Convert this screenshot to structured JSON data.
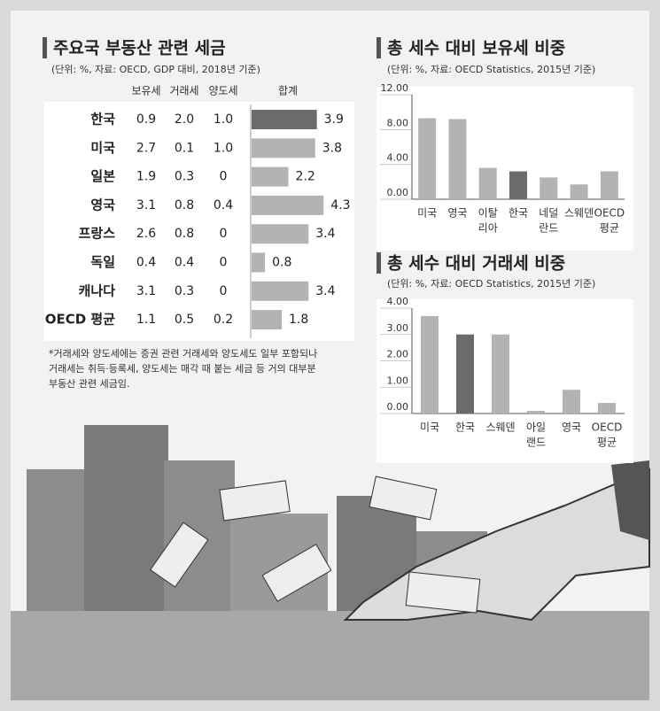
{
  "chart_data": [
    {
      "type": "table-bar",
      "title": "주요국 부동산 관련 세금",
      "subtitle": "(단위: %, 자료: OECD, GDP 대비, 2018년 기준)",
      "categories": [
        "한국",
        "미국",
        "일본",
        "영국",
        "프랑스",
        "독일",
        "캐나다",
        "OECD 평균"
      ],
      "series": [
        {
          "name": "보유세",
          "values": [
            0.9,
            2.7,
            1.9,
            3.1,
            2.6,
            0.4,
            3.1,
            1.1
          ]
        },
        {
          "name": "거래세",
          "values": [
            2.0,
            0.1,
            0.3,
            0.8,
            0.8,
            0.4,
            0.3,
            0.5
          ],
          "value_labels": [
            "2.0",
            "0.1",
            "0.3",
            "0.8",
            "0.8",
            "0.4",
            "0.3",
            "0.5"
          ]
        },
        {
          "name": "양도세",
          "values": [
            1.0,
            1.0,
            0,
            0.4,
            0,
            0,
            0,
            0.2
          ],
          "value_labels": [
            "1.0",
            "1.0",
            "0",
            "0.4",
            "0",
            "0",
            "0",
            "0.2"
          ]
        },
        {
          "name": "합계",
          "values": [
            3.9,
            3.8,
            2.2,
            4.3,
            3.4,
            0.8,
            3.4,
            1.8
          ],
          "colors": [
            "#6b6b6b",
            "#b3b3b3",
            "#b3b3b3",
            "#b3b3b3",
            "#b3b3b3",
            "#b3b3b3",
            "#b3b3b3",
            "#b3b3b3"
          ]
        }
      ],
      "xlim": [
        0,
        4.5
      ],
      "note_lines": [
        "*거래세와 양도세에는 증권 관련 거래세와 양도세도 일부 포함되나",
        "거래세는 취득·등록세, 양도세는 매각 때 붙는 세금 등 거의 대부분",
        "부동산 관련 세금임."
      ]
    },
    {
      "type": "bar",
      "title": "총 세수 대비 보유세 비중",
      "subtitle": "(단위: %, 자료: OECD Statistics, 2015년 기준)",
      "categories": [
        [
          "미국"
        ],
        [
          "영국"
        ],
        [
          "이탈",
          "리아"
        ],
        [
          "한국"
        ],
        [
          "네덜",
          "란드"
        ],
        [
          "스웨덴"
        ],
        [
          "OECD",
          "평균"
        ]
      ],
      "values": [
        9.3,
        9.2,
        3.6,
        3.2,
        2.5,
        1.7,
        3.2
      ],
      "colors": [
        "#b3b3b3",
        "#b3b3b3",
        "#b3b3b3",
        "#6b6b6b",
        "#b3b3b3",
        "#b3b3b3",
        "#b3b3b3"
      ],
      "ylim": [
        0,
        12
      ],
      "yticks": [
        {
          "value": 0,
          "label": "0.00"
        },
        {
          "value": 4,
          "label": "4.00"
        },
        {
          "value": 8,
          "label": "8.00"
        },
        {
          "value": 12,
          "label": "12.00"
        }
      ]
    },
    {
      "type": "bar",
      "title": "총 세수 대비 거래세 비중",
      "subtitle": "(단위: %, 자료: OECD Statistics, 2015년 기준)",
      "categories": [
        [
          "미국"
        ],
        [
          "한국"
        ],
        [
          "스웨덴"
        ],
        [
          "아일",
          "랜드"
        ],
        [
          "영국"
        ],
        [
          "OECD",
          "평균"
        ]
      ],
      "values": [
        3.7,
        3.0,
        3.0,
        0.1,
        0.9,
        0.4
      ],
      "colors": [
        "#b3b3b3",
        "#6b6b6b",
        "#b3b3b3",
        "#b3b3b3",
        "#b3b3b3",
        "#b3b3b3"
      ],
      "ylim": [
        0,
        4
      ],
      "yticks": [
        {
          "value": 0,
          "label": "0.00"
        },
        {
          "value": 1,
          "label": "1.00"
        },
        {
          "value": 2,
          "label": "2.00"
        },
        {
          "value": 3,
          "label": "3.00"
        },
        {
          "value": 4,
          "label": "4.00"
        }
      ]
    }
  ]
}
